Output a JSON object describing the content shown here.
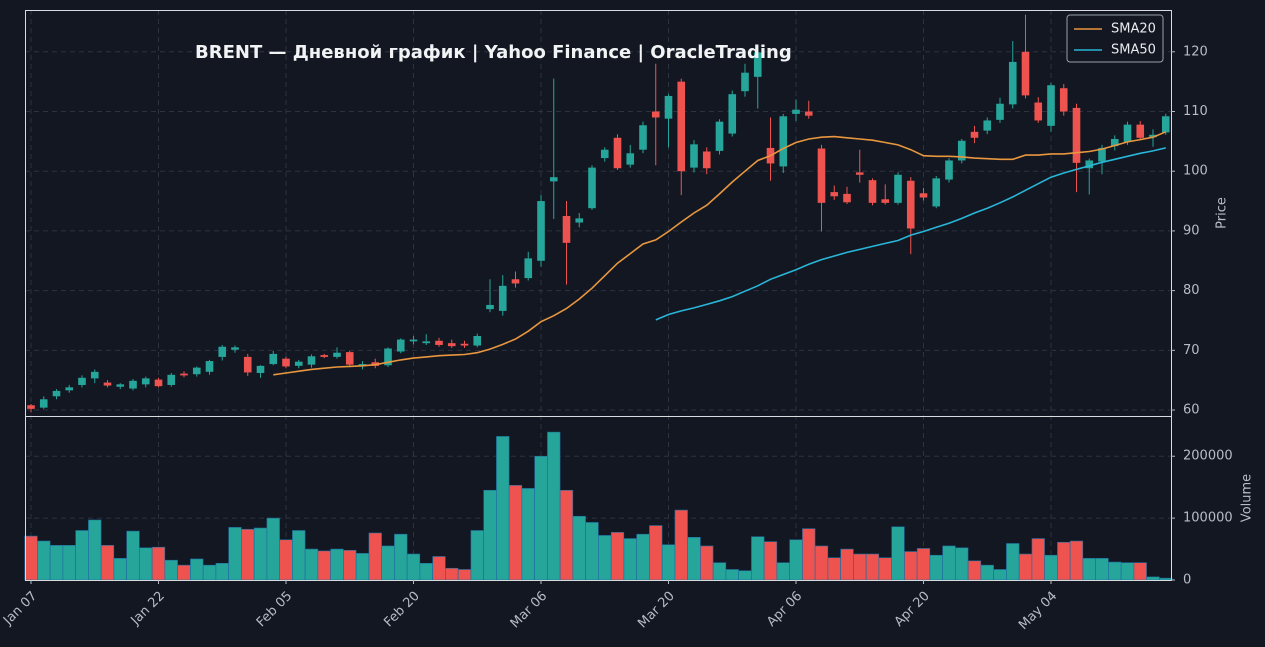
{
  "chart_data": {
    "type": "candlestick",
    "title": "BRENT  —  Дневной график  |  Yahoo Finance  |  OracleTrading",
    "ylabel": "Price",
    "volume_label": "Volume",
    "categories": [
      "Jan 07",
      null,
      null,
      null,
      null,
      null,
      null,
      null,
      null,
      null,
      "Jan 22",
      null,
      null,
      null,
      null,
      null,
      null,
      null,
      null,
      null,
      "Feb 05",
      null,
      null,
      null,
      null,
      null,
      null,
      null,
      null,
      null,
      "Feb 20",
      null,
      null,
      null,
      null,
      null,
      null,
      null,
      null,
      null,
      "Mar 06",
      null,
      null,
      null,
      null,
      null,
      null,
      null,
      null,
      null,
      "Mar 20",
      null,
      null,
      null,
      null,
      null,
      null,
      null,
      null,
      null,
      "Apr 06",
      null,
      null,
      null,
      null,
      null,
      null,
      null,
      null,
      null,
      "Apr 20",
      null,
      null,
      null,
      null,
      null,
      null,
      null,
      null,
      null,
      "May 04",
      null,
      null,
      null,
      null,
      null,
      null,
      null,
      null,
      null
    ],
    "open": [
      60.8,
      60.4,
      62.3,
      63.3,
      64.2,
      65.3,
      64.6,
      63.9,
      63.6,
      64.3,
      65.1,
      64.2,
      66.1,
      66.0,
      66.4,
      68.9,
      70.1,
      68.9,
      66.2,
      67.7,
      68.6,
      67.4,
      67.6,
      69.2,
      68.9,
      69.7,
      67.4,
      68.0,
      67.5,
      69.8,
      71.5,
      71.2,
      71.6,
      71.2,
      71.1,
      70.8,
      76.9,
      76.6,
      81.9,
      82.1,
      85.0,
      98.3,
      92.5,
      91.4,
      93.8,
      102.2,
      105.6,
      101.1,
      103.6,
      110.0,
      108.8,
      115.0,
      100.6,
      103.3,
      103.4,
      106.3,
      113.4,
      115.8,
      103.9,
      100.8,
      109.6,
      110.0,
      103.8,
      96.5,
      96.2,
      99.8,
      98.5,
      95.3,
      94.7,
      98.4,
      96.3,
      94.1,
      98.6,
      101.8,
      106.6,
      106.8,
      108.6,
      111.2,
      120.0,
      111.5,
      107.6,
      113.9,
      110.6,
      100.5,
      101.6,
      104.2,
      104.9,
      107.8,
      105.7,
      106.5
    ],
    "high": [
      61.0,
      62.3,
      63.5,
      64.2,
      65.8,
      66.8,
      65.0,
      64.5,
      65.2,
      65.6,
      65.4,
      66.2,
      66.5,
      67.3,
      68.4,
      70.9,
      70.8,
      69.4,
      67.5,
      69.9,
      68.9,
      68.4,
      69.3,
      69.4,
      70.5,
      69.9,
      68.2,
      68.6,
      70.5,
      72.0,
      72.4,
      72.7,
      72.1,
      71.8,
      71.6,
      72.8,
      81.9,
      82.6,
      83.2,
      86.5,
      96.0,
      115.5,
      95.0,
      93.0,
      101.0,
      104.0,
      106.2,
      104.4,
      108.3,
      118.0,
      112.9,
      115.5,
      105.2,
      104.0,
      108.7,
      113.5,
      118.0,
      121.0,
      109.0,
      109.6,
      112.0,
      111.8,
      104.4,
      97.6,
      97.4,
      103.6,
      98.8,
      97.8,
      99.8,
      99.0,
      97.2,
      99.2,
      102.2,
      105.4,
      107.6,
      109.0,
      112.3,
      121.8,
      126.2,
      112.4,
      114.8,
      114.6,
      111.3,
      102.1,
      104.4,
      106.0,
      108.3,
      108.4,
      107.0,
      109.6
    ],
    "low": [
      59.6,
      60.2,
      61.8,
      62.9,
      63.8,
      64.5,
      63.8,
      63.5,
      63.3,
      63.8,
      63.8,
      63.9,
      65.5,
      65.6,
      65.9,
      68.3,
      69.6,
      65.7,
      65.4,
      67.5,
      67.0,
      67.0,
      67.1,
      68.7,
      68.6,
      67.3,
      66.8,
      67.0,
      67.2,
      69.5,
      71.0,
      70.9,
      70.6,
      70.4,
      70.4,
      70.5,
      76.4,
      75.8,
      80.5,
      81.7,
      84.0,
      92.0,
      81.0,
      90.6,
      93.5,
      101.6,
      100.2,
      100.6,
      103.0,
      101.0,
      104.0,
      96.0,
      99.8,
      99.5,
      102.8,
      105.8,
      112.5,
      110.5,
      98.4,
      99.7,
      108.4,
      108.8,
      89.9,
      95.2,
      94.5,
      98.1,
      94.3,
      94.4,
      94.4,
      86.1,
      95.1,
      93.8,
      98.1,
      101.3,
      104.7,
      106.2,
      108.1,
      110.5,
      112.2,
      108.1,
      106.6,
      109.3,
      96.5,
      96.1,
      99.5,
      103.5,
      104.4,
      105.2,
      104.1,
      106.1
    ],
    "close": [
      60.2,
      61.8,
      63.2,
      63.8,
      65.4,
      66.4,
      64.1,
      64.3,
      64.9,
      65.3,
      64.0,
      65.9,
      65.8,
      67.1,
      68.2,
      70.6,
      70.5,
      66.3,
      67.4,
      69.4,
      67.3,
      68.1,
      69.0,
      68.9,
      69.6,
      67.6,
      67.7,
      67.4,
      70.3,
      71.8,
      71.8,
      71.5,
      70.9,
      70.7,
      70.8,
      72.4,
      77.6,
      80.8,
      81.2,
      85.4,
      95.0,
      99.0,
      88.0,
      92.1,
      100.6,
      103.6,
      100.5,
      103.0,
      107.7,
      109.0,
      112.6,
      100.0,
      104.5,
      100.5,
      108.3,
      112.9,
      116.5,
      119.9,
      101.3,
      109.2,
      110.3,
      109.3,
      94.7,
      95.8,
      94.8,
      99.4,
      94.7,
      94.7,
      99.4,
      90.4,
      95.6,
      98.8,
      101.8,
      105.1,
      105.6,
      108.5,
      111.3,
      118.3,
      112.7,
      108.5,
      114.4,
      110.0,
      101.4,
      101.8,
      103.9,
      105.4,
      107.8,
      105.6,
      106.1,
      109.2
    ],
    "volume": [
      71000,
      63000,
      56000,
      56000,
      80000,
      97000,
      56000,
      35000,
      79000,
      52000,
      53000,
      32000,
      24000,
      34000,
      24000,
      27000,
      85000,
      82000,
      84000,
      100000,
      65000,
      80000,
      50000,
      47000,
      50000,
      48000,
      43000,
      76000,
      55000,
      74000,
      42000,
      27000,
      38000,
      19000,
      17000,
      80000,
      145000,
      232000,
      153000,
      148000,
      200000,
      239000,
      145000,
      103000,
      93000,
      72000,
      77000,
      67000,
      74000,
      88000,
      57000,
      113000,
      69000,
      55000,
      28000,
      17000,
      15000,
      70000,
      62000,
      28000,
      65000,
      83000,
      55000,
      36000,
      50000,
      42000,
      42000,
      36000,
      86000,
      46000,
      51000,
      40000,
      55000,
      52000,
      31000,
      24000,
      17000,
      59000,
      42000,
      67000,
      40000,
      61000,
      63000,
      35000,
      35000,
      29000,
      28000,
      28000,
      5000,
      3000
    ],
    "up_color": "#26a69a",
    "down_color": "#ef5350",
    "series": [
      {
        "name": "SMA20",
        "color": "#e8973f",
        "values": [
          null,
          null,
          null,
          null,
          null,
          null,
          null,
          null,
          null,
          null,
          null,
          null,
          null,
          null,
          null,
          null,
          null,
          null,
          null,
          65.9,
          66.2,
          66.5,
          66.8,
          67.0,
          67.2,
          67.3,
          67.4,
          67.6,
          68.0,
          68.4,
          68.7,
          68.9,
          69.1,
          69.2,
          69.3,
          69.6,
          70.2,
          71.0,
          71.9,
          73.2,
          74.8,
          75.8,
          77.0,
          78.6,
          80.4,
          82.5,
          84.6,
          86.2,
          87.8,
          88.5,
          89.9,
          91.5,
          93.0,
          94.3,
          96.2,
          98.2,
          100.0,
          101.8,
          102.6,
          103.8,
          104.8,
          105.4,
          105.7,
          105.8,
          105.6,
          105.4,
          105.2,
          104.8,
          104.4,
          103.6,
          102.6,
          102.5,
          102.5,
          102.4,
          102.2,
          102.1,
          102.0,
          102.0,
          102.7,
          102.7,
          102.9,
          102.9,
          103.1,
          103.3,
          103.7,
          104.3,
          104.9,
          105.3,
          105.7,
          106.6
        ]
      },
      {
        "name": "SMA50",
        "color": "#29b6d8",
        "values": [
          null,
          null,
          null,
          null,
          null,
          null,
          null,
          null,
          null,
          null,
          null,
          null,
          null,
          null,
          null,
          null,
          null,
          null,
          null,
          null,
          null,
          null,
          null,
          null,
          null,
          null,
          null,
          null,
          null,
          null,
          null,
          null,
          null,
          null,
          null,
          null,
          null,
          null,
          null,
          null,
          null,
          null,
          null,
          null,
          null,
          null,
          null,
          null,
          null,
          75.1,
          76.0,
          76.6,
          77.1,
          77.7,
          78.3,
          79.0,
          79.9,
          80.8,
          81.9,
          82.7,
          83.5,
          84.4,
          85.2,
          85.8,
          86.4,
          86.9,
          87.4,
          87.9,
          88.4,
          89.3,
          89.9,
          90.6,
          91.3,
          92.1,
          93.0,
          93.8,
          94.7,
          95.7,
          96.8,
          97.9,
          99.0,
          99.7,
          100.3,
          100.9,
          101.5,
          102.0,
          102.5,
          103.0,
          103.4,
          103.9
        ]
      }
    ],
    "ylim": [
      59,
      127
    ],
    "yticks": [
      60,
      70,
      80,
      90,
      100,
      110,
      120
    ],
    "volume_ylim": [
      0,
      265000
    ],
    "volume_yticks": [
      0,
      100000,
      200000
    ],
    "grid": true,
    "legend": "upper right"
  }
}
